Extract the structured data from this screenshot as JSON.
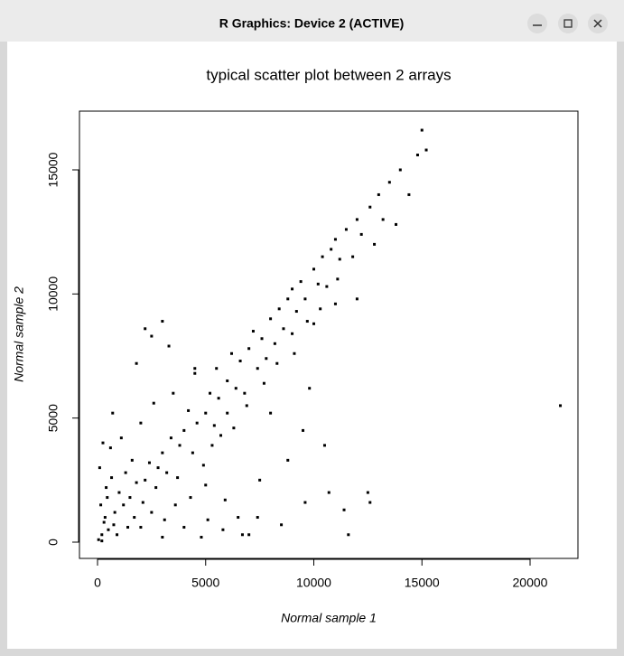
{
  "window": {
    "title": "R Graphics: Device 2 (ACTIVE)"
  },
  "chart_data": {
    "type": "scatter",
    "title": "typical scatter plot between 2 arrays",
    "x_label": "Normal sample 1",
    "y_label": "Normal sample 2",
    "color": "#000000",
    "xlim": [
      -835,
      22213
    ],
    "ylim": [
      -655,
      17366
    ],
    "xticks": [
      0,
      5000,
      10000,
      15000,
      20000
    ],
    "yticks": [
      0,
      5000,
      10000,
      15000
    ],
    "x": [
      50,
      200,
      300,
      150,
      400,
      100,
      250,
      600,
      500,
      800,
      900,
      1000,
      1200,
      1100,
      700,
      1300,
      1500,
      1600,
      1800,
      2000,
      2000,
      2200,
      2400,
      2500,
      2600,
      2800,
      3000,
      3000,
      3200,
      3400,
      3500,
      3600,
      3800,
      4000,
      4000,
      4200,
      4400,
      4500,
      4600,
      4800,
      5000,
      5000,
      5200,
      5400,
      5500,
      5600,
      5800,
      6000,
      6000,
      6200,
      6400,
      6500,
      6600,
      6800,
      7000,
      7000,
      7200,
      7400,
      7500,
      7600,
      7800,
      8000,
      8000,
      8200,
      8400,
      8500,
      8600,
      8800,
      9000,
      9000,
      9200,
      9400,
      9500,
      9600,
      9800,
      10000,
      10000,
      10200,
      10400,
      10500,
      10600,
      10800,
      11000,
      11000,
      11200,
      11400,
      11500,
      11600,
      11800,
      12000,
      12000,
      12200,
      12500,
      12600,
      12600,
      12800,
      13000,
      13200,
      13500,
      13800,
      14000,
      14400,
      14800,
      15000,
      15200,
      21400,
      3000,
      2200,
      2500,
      1800,
      3300,
      4500,
      200,
      350,
      450,
      650,
      750,
      1400,
      1700,
      2100,
      2700,
      3100,
      3700,
      4300,
      4900,
      5300,
      5700,
      6300,
      6900,
      7700,
      8300,
      9100,
      9700,
      10300,
      11100,
      8800,
      9600,
      10700,
      7400,
      6700,
      5900,
      5100
    ],
    "values": [
      100,
      50,
      800,
      1500,
      2200,
      3000,
      4000,
      3800,
      500,
      1200,
      300,
      2000,
      1500,
      4200,
      5200,
      2800,
      1800,
      3300,
      2400,
      600,
      4800,
      2500,
      3200,
      1200,
      5600,
      3000,
      3600,
      200,
      2800,
      4200,
      6000,
      1500,
      3900,
      4500,
      600,
      5300,
      3600,
      6800,
      4800,
      200,
      5200,
      2300,
      6000,
      4700,
      7000,
      5800,
      500,
      6500,
      5200,
      7600,
      6200,
      1000,
      7300,
      6000,
      7800,
      300,
      8500,
      7000,
      2500,
      8200,
      7400,
      9000,
      5200,
      8000,
      9400,
      700,
      8600,
      9800,
      8400,
      10200,
      9300,
      10500,
      4500,
      9800,
      6200,
      11000,
      8800,
      10400,
      11500,
      3900,
      10300,
      11800,
      9600,
      12200,
      11400,
      1300,
      12600,
      300,
      11500,
      13000,
      9800,
      12400,
      2000,
      1600,
      13500,
      12000,
      14000,
      13000,
      14500,
      12800,
      15000,
      14000,
      15600,
      16600,
      15800,
      5500,
      8900,
      8600,
      8300,
      7200,
      7900,
      7000,
      300,
      1000,
      1800,
      2600,
      700,
      600,
      1000,
      1600,
      2200,
      900,
      2600,
      1800,
      3100,
      3900,
      4300,
      4600,
      5500,
      6400,
      7200,
      7600,
      8900,
      9400,
      10600,
      3300,
      1600,
      2000,
      1000,
      300,
      1700,
      900
    ]
  }
}
